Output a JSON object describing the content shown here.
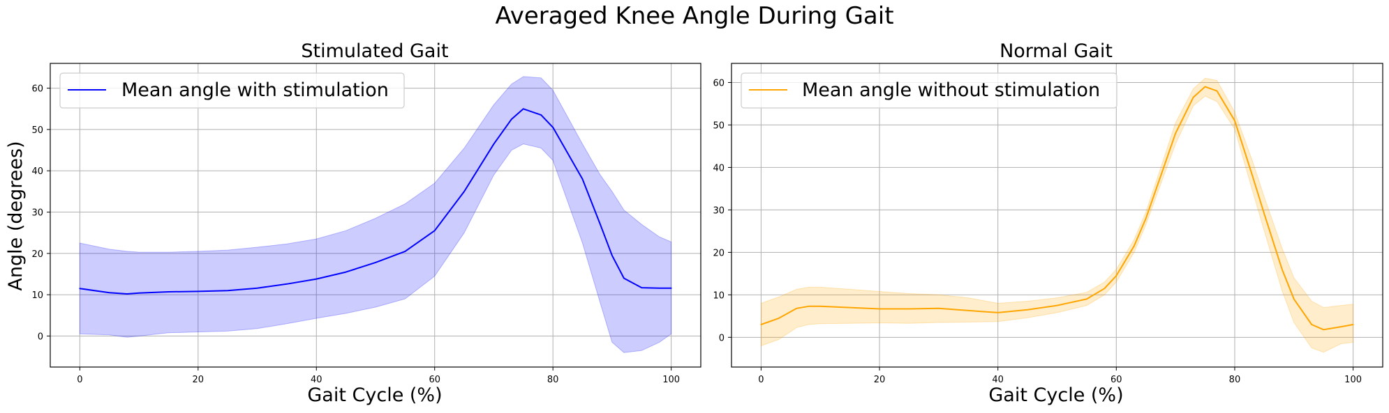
{
  "figure": {
    "title": "Averaged Knee Angle During Gait"
  },
  "chart_data": [
    {
      "type": "line",
      "title": "Stimulated Gait",
      "xlabel": "Gait Cycle (%)",
      "ylabel": "Angle (degrees)",
      "xlim": [
        -5,
        105
      ],
      "ylim": [
        -7.5,
        66
      ],
      "xticks": [
        "0",
        "20",
        "40",
        "60",
        "80",
        "100"
      ],
      "yticks": [
        "0",
        "10",
        "20",
        "30",
        "40",
        "50",
        "60"
      ],
      "grid": true,
      "legend_position": "upper left",
      "series": [
        {
          "name": "Mean angle with stimulation",
          "color": "#0000ff",
          "band_color": "#0000ff",
          "x": [
            0,
            5,
            8,
            10,
            15,
            20,
            25,
            30,
            35,
            40,
            45,
            50,
            55,
            60,
            65,
            70,
            73,
            75,
            78,
            80,
            85,
            88,
            90,
            92,
            95,
            98,
            100
          ],
          "y": [
            11.5,
            10.5,
            10.2,
            10.4,
            10.7,
            10.8,
            11.0,
            11.6,
            12.6,
            13.8,
            15.5,
            17.8,
            20.5,
            25.5,
            35.0,
            46.5,
            52.5,
            55.0,
            53.5,
            50.5,
            38.0,
            27.0,
            19.5,
            14.0,
            11.7,
            11.6,
            11.6
          ],
          "lower": [
            0.5,
            0.3,
            -0.3,
            0.0,
            0.8,
            1.0,
            1.2,
            1.8,
            3.0,
            4.3,
            5.5,
            7.0,
            9.0,
            14.5,
            25.0,
            39.0,
            45.0,
            46.5,
            45.5,
            42.5,
            22.5,
            8.0,
            -1.5,
            -4.0,
            -3.5,
            -1.5,
            0.5
          ],
          "upper": [
            22.5,
            21.0,
            20.5,
            20.3,
            20.3,
            20.5,
            20.8,
            21.5,
            22.3,
            23.5,
            25.5,
            28.5,
            32.0,
            37.0,
            45.5,
            56.0,
            61.0,
            62.8,
            62.5,
            59.5,
            46.5,
            39.0,
            35.0,
            30.5,
            27.0,
            24.0,
            22.8
          ]
        }
      ]
    },
    {
      "type": "line",
      "title": "Normal Gait",
      "xlabel": "Gait Cycle (%)",
      "ylabel": "",
      "xlim": [
        -5,
        105
      ],
      "ylim": [
        -7,
        64.5
      ],
      "xticks": [
        "0",
        "20",
        "40",
        "60",
        "80",
        "100"
      ],
      "yticks": [
        "0",
        "10",
        "20",
        "30",
        "40",
        "50",
        "60"
      ],
      "grid": true,
      "legend_position": "upper left",
      "series": [
        {
          "name": "Mean angle without stimulation",
          "color": "#ffa500",
          "band_color": "#ffa500",
          "x": [
            0,
            3,
            6,
            8,
            10,
            15,
            20,
            25,
            30,
            35,
            40,
            45,
            50,
            55,
            58,
            60,
            63,
            65,
            68,
            70,
            73,
            75,
            77,
            80,
            83,
            85,
            88,
            90,
            93,
            95,
            98,
            100
          ],
          "y": [
            3.0,
            4.5,
            6.8,
            7.3,
            7.3,
            7.0,
            6.7,
            6.7,
            6.8,
            6.3,
            5.8,
            6.5,
            7.5,
            9.0,
            11.5,
            14.5,
            21.5,
            28.0,
            40.0,
            48.0,
            56.5,
            59.0,
            58.0,
            51.0,
            38.0,
            29.0,
            16.0,
            9.0,
            3.0,
            1.8,
            2.5,
            3.0
          ],
          "lower": [
            -2.0,
            -0.5,
            2.3,
            3.0,
            3.2,
            3.3,
            3.4,
            3.3,
            3.5,
            3.6,
            3.7,
            4.6,
            5.8,
            7.5,
            10.0,
            13.0,
            20.0,
            26.5,
            38.0,
            45.5,
            54.5,
            56.8,
            55.5,
            49.0,
            34.5,
            25.0,
            11.0,
            3.5,
            -2.5,
            -3.5,
            -1.5,
            -1.2
          ],
          "upper": [
            8.0,
            9.5,
            11.3,
            11.8,
            11.8,
            11.3,
            10.8,
            10.3,
            10.0,
            9.3,
            8.0,
            8.5,
            9.3,
            10.6,
            13.0,
            16.0,
            23.0,
            29.5,
            42.0,
            50.5,
            58.5,
            61.0,
            60.5,
            53.0,
            41.5,
            33.0,
            21.0,
            14.0,
            8.5,
            7.0,
            7.5,
            7.8
          ]
        }
      ]
    }
  ]
}
